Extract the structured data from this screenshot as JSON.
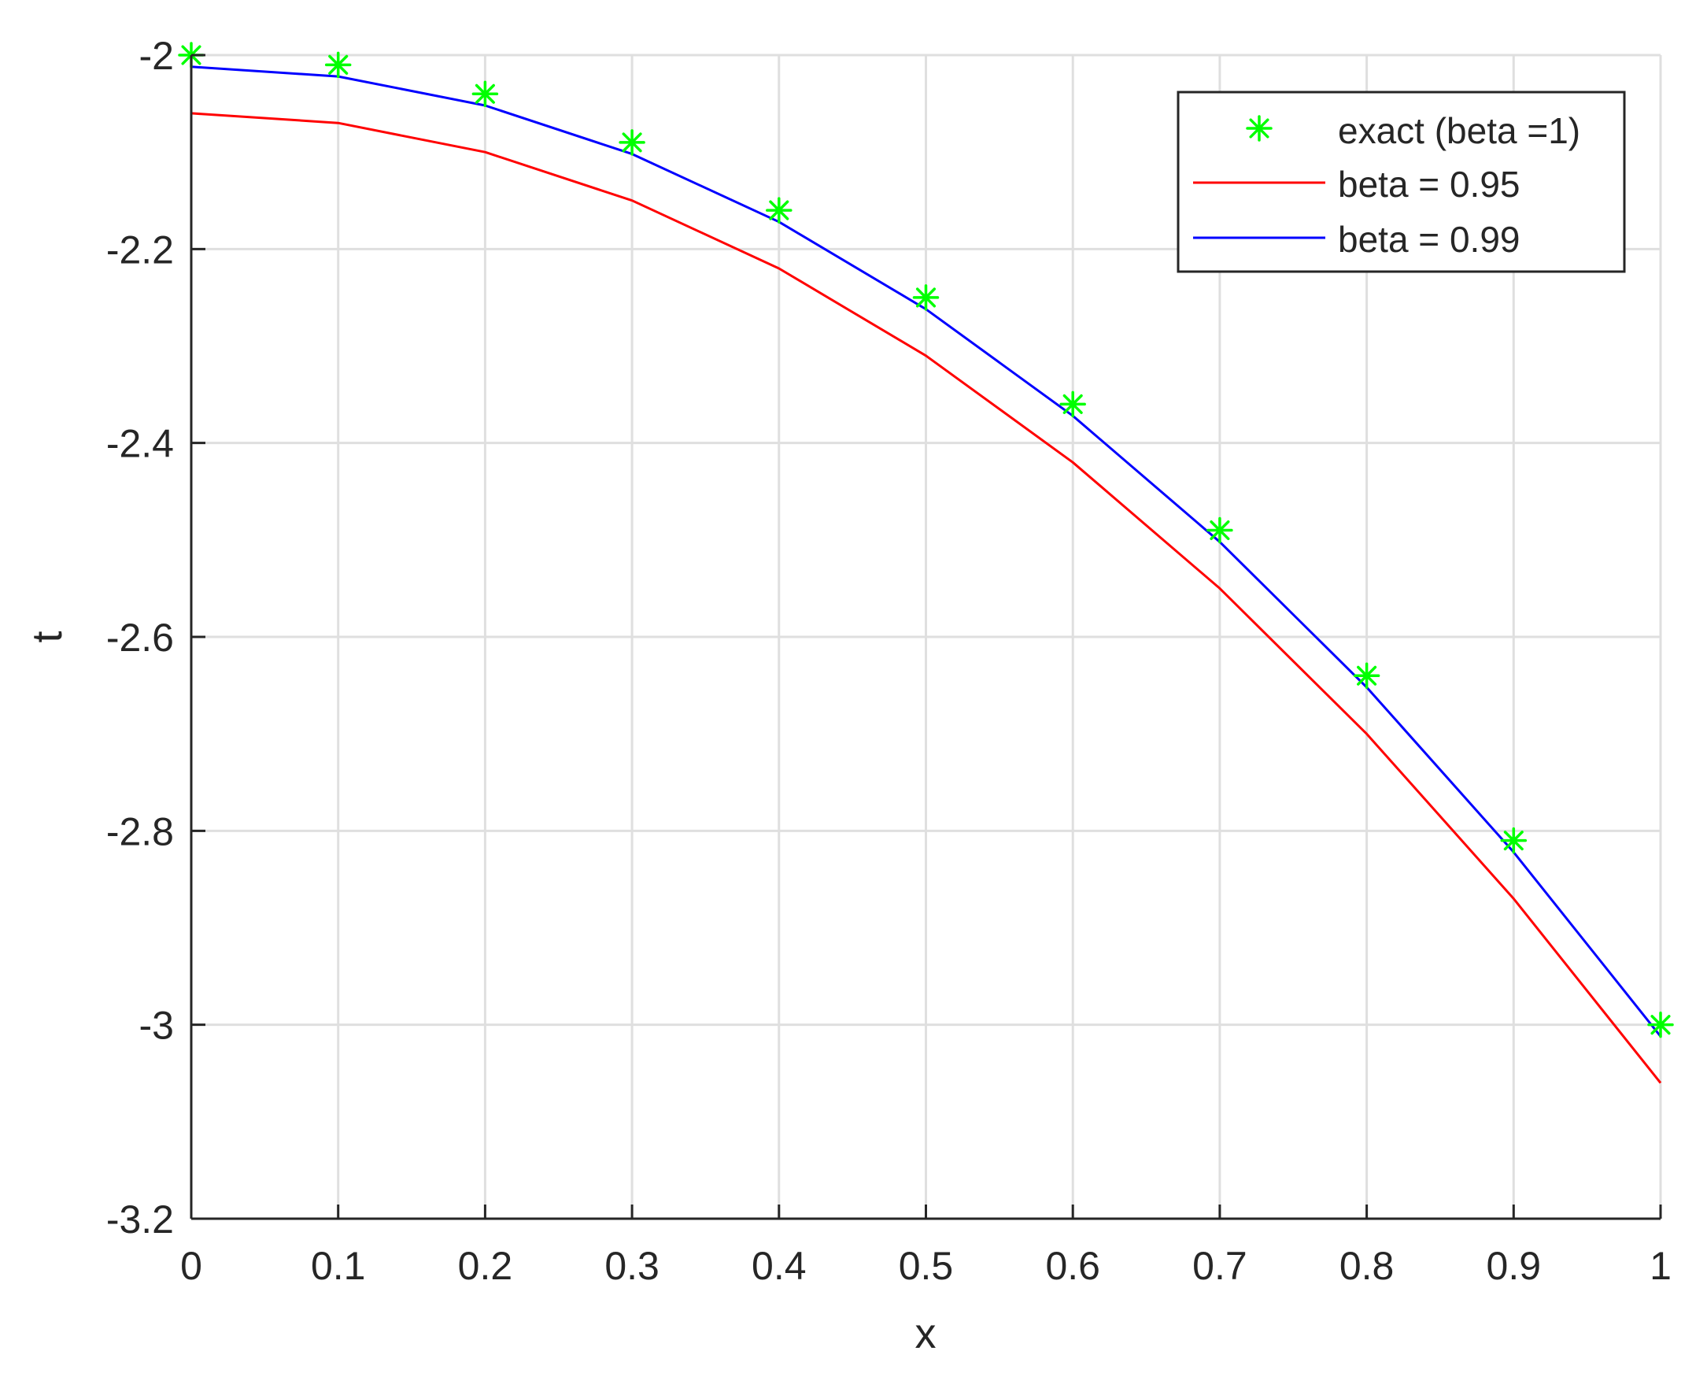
{
  "chart_data": {
    "type": "line",
    "title": "",
    "xlabel": "x",
    "ylabel": "t",
    "xlim": [
      0,
      1
    ],
    "ylim": [
      -3.2,
      -2
    ],
    "xticks": [
      0,
      0.1,
      0.2,
      0.3,
      0.4,
      0.5,
      0.6,
      0.7,
      0.8,
      0.9,
      1
    ],
    "xtick_labels": [
      "0",
      "0.1",
      "0.2",
      "0.3",
      "0.4",
      "0.5",
      "0.6",
      "0.7",
      "0.8",
      "0.9",
      "1"
    ],
    "yticks": [
      -3.2,
      -3,
      -2.8,
      -2.6,
      -2.4,
      -2.2,
      -2
    ],
    "ytick_labels": [
      "-3.2",
      "-3",
      "-2.8",
      "-2.6",
      "-2.4",
      "-2.2",
      "-2"
    ],
    "grid": true,
    "legend_position": "top-right",
    "x": [
      0,
      0.1,
      0.2,
      0.3,
      0.4,
      0.5,
      0.6,
      0.7,
      0.8,
      0.9,
      1
    ],
    "series": [
      {
        "name": "exact (beta =1)",
        "style": "markers",
        "marker": "asterisk",
        "color": "#00ff00",
        "values": [
          -2.0,
          -2.01,
          -2.04,
          -2.09,
          -2.16,
          -2.25,
          -2.36,
          -2.49,
          -2.64,
          -2.81,
          -3.0
        ]
      },
      {
        "name": "beta = 0.95",
        "style": "line",
        "color": "#ff0000",
        "values": [
          -2.06,
          -2.07,
          -2.1,
          -2.15,
          -2.22,
          -2.31,
          -2.42,
          -2.55,
          -2.7,
          -2.87,
          -3.06
        ]
      },
      {
        "name": "beta = 0.99",
        "style": "line",
        "color": "#0000ff",
        "values": [
          -2.012,
          -2.022,
          -2.052,
          -2.102,
          -2.172,
          -2.262,
          -2.372,
          -2.502,
          -2.652,
          -2.822,
          -3.012
        ]
      }
    ]
  }
}
